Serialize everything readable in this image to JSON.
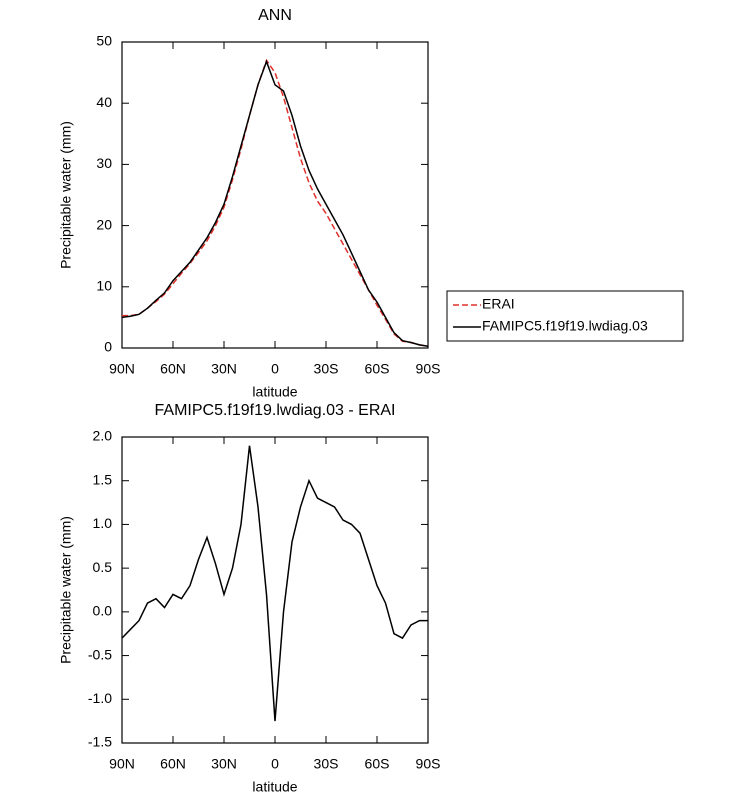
{
  "chart_data": [
    {
      "type": "line",
      "title": "ANN",
      "x_label": "latitude",
      "y_label": "Precipitable water (mm)",
      "x": [
        90,
        85,
        80,
        75,
        70,
        65,
        60,
        55,
        50,
        45,
        40,
        35,
        30,
        25,
        20,
        15,
        10,
        5,
        0,
        -5,
        -10,
        -15,
        -20,
        -25,
        -30,
        -35,
        -40,
        -45,
        -50,
        -55,
        -60,
        -65,
        -70,
        -75,
        -80,
        -85,
        -90
      ],
      "series": [
        {
          "name": "ERAI",
          "color": "#e0302a",
          "dashed": true,
          "values": [
            5.3,
            5.3,
            5.5,
            6.5,
            7.6,
            8.8,
            10.5,
            12.2,
            13.8,
            15.6,
            17.5,
            20,
            23,
            27.5,
            32.5,
            38,
            43,
            47,
            45,
            41,
            36,
            31,
            27,
            24,
            22,
            19.5,
            17,
            14.5,
            12,
            9.5,
            7,
            4.7,
            2.3,
            1.1,
            0.9,
            0.5,
            0.3
          ]
        },
        {
          "name": "FAMIPC5.f19f19.lwdiag.03",
          "color": "#000000",
          "dashed": false,
          "values": [
            5,
            5.2,
            5.5,
            6.5,
            7.8,
            9,
            11,
            12.5,
            14,
            16,
            18,
            20.5,
            23.5,
            28,
            33,
            38,
            43,
            46.8,
            43,
            42,
            38,
            33,
            29,
            26,
            23.5,
            21,
            18.5,
            15.5,
            12.5,
            9.5,
            7.5,
            5,
            2.5,
            1.2,
            0.9,
            0.5,
            0.3
          ]
        }
      ],
      "xlim": [
        90,
        -90
      ],
      "xticks": [
        {
          "value": 90,
          "label": "90N"
        },
        {
          "value": 60,
          "label": "60N"
        },
        {
          "value": 30,
          "label": "30N"
        },
        0,
        {
          "value": -30,
          "label": "30S"
        },
        {
          "value": -60,
          "label": "60S"
        },
        {
          "value": -90,
          "label": "90S"
        }
      ],
      "ylim": [
        0,
        50
      ],
      "yticks": [
        0,
        10,
        20,
        30,
        40,
        50
      ],
      "legend": "right"
    },
    {
      "type": "line",
      "title": "FAMIPC5.f19f19.lwdiag.03 - ERAI",
      "x_label": "latitude",
      "y_label": "Precipitable water (mm)",
      "x": [
        90,
        85,
        80,
        75,
        70,
        65,
        60,
        55,
        50,
        45,
        40,
        35,
        30,
        25,
        20,
        15,
        10,
        5,
        0,
        -5,
        -10,
        -15,
        -20,
        -25,
        -30,
        -35,
        -40,
        -45,
        -50,
        -55,
        -60,
        -65,
        -70,
        -75,
        -80,
        -85,
        -90
      ],
      "color": "#000000",
      "values": [
        -0.3,
        -0.2,
        -0.1,
        0.1,
        0.15,
        0.05,
        0.2,
        0.15,
        0.3,
        0.6,
        0.85,
        0.55,
        0.2,
        0.5,
        1.0,
        1.9,
        1.2,
        0.2,
        -1.25,
        0.0,
        0.8,
        1.2,
        1.5,
        1.3,
        1.25,
        1.2,
        1.05,
        1.0,
        0.9,
        0.6,
        0.3,
        0.1,
        -0.25,
        -0.3,
        -0.15,
        -0.1,
        -0.1
      ],
      "xlim": [
        90,
        -90
      ],
      "xticks": [
        {
          "value": 90,
          "label": "90N"
        },
        {
          "value": 60,
          "label": "60N"
        },
        {
          "value": 30,
          "label": "30N"
        },
        0,
        {
          "value": -30,
          "label": "30S"
        },
        {
          "value": -60,
          "label": "60S"
        },
        {
          "value": -90,
          "label": "90S"
        }
      ],
      "ylim": [
        -1.5,
        2.0
      ],
      "yticks": [
        -1.5,
        {
          "value": -1.0,
          "label": "-1.0"
        },
        -0.5,
        {
          "value": 0,
          "label": "0.0"
        },
        0.5,
        {
          "value": 1.0,
          "label": "1.0"
        },
        1.5,
        {
          "value": 2.0,
          "label": "2.0"
        }
      ]
    }
  ]
}
